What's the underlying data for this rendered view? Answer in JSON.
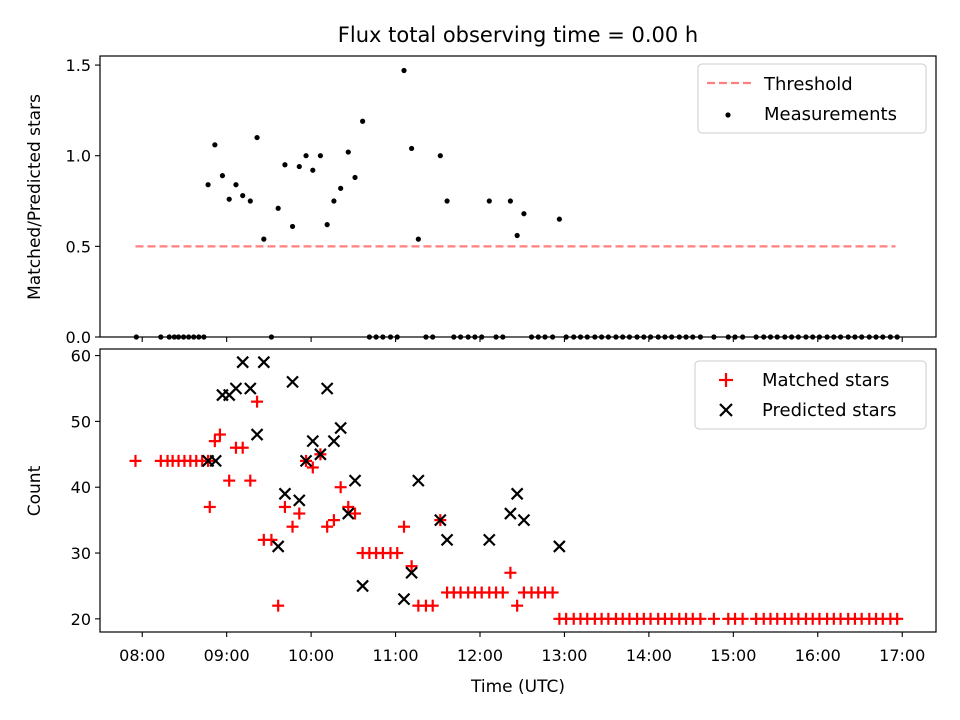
{
  "figure_title": "Flux total observing time = 0.00 h",
  "colors": {
    "threshold": "#ff7f7f",
    "matched": "#ff0000",
    "predicted": "#000000",
    "measurement": "#000000"
  },
  "chart_data": [
    {
      "type": "scatter",
      "ylabel": "Matched/Predicted stars",
      "ylim": [
        0,
        1.55
      ],
      "yticks": [
        0.0,
        0.5,
        1.0,
        1.5
      ],
      "ytick_labels": [
        "0.0",
        "0.5",
        "1.0",
        "1.5"
      ],
      "xlim": [
        7.5,
        17.4
      ],
      "legend_position": "top-right",
      "threshold": {
        "name": "Threshold",
        "y": 0.5,
        "x_range": [
          7.92,
          16.92
        ]
      },
      "measurements": {
        "name": "Measurements",
        "x": [
          7.93,
          8.22,
          8.32,
          8.38,
          8.43,
          8.49,
          8.55,
          8.61,
          8.67,
          8.73,
          8.78,
          8.86,
          8.95,
          9.03,
          9.11,
          9.19,
          9.28,
          9.36,
          9.44,
          9.53,
          9.61,
          9.69,
          9.78,
          9.86,
          9.94,
          10.02,
          10.11,
          10.19,
          10.27,
          10.35,
          10.44,
          10.52,
          10.61,
          10.69,
          10.77,
          10.85,
          10.94,
          11.02,
          11.1,
          11.19,
          11.27,
          11.36,
          11.44,
          11.53,
          11.61,
          11.69,
          11.77,
          11.86,
          11.94,
          12.02,
          12.11,
          12.19,
          12.27,
          12.36,
          12.44,
          12.52,
          12.61,
          12.69,
          12.77,
          12.86,
          12.94,
          13.02,
          13.11,
          13.19,
          13.27,
          13.36,
          13.44,
          13.52,
          13.61,
          13.69,
          13.77,
          13.86,
          13.94,
          14.02,
          14.11,
          14.19,
          14.27,
          14.36,
          14.44,
          14.52,
          14.61,
          14.77,
          14.94,
          15.02,
          15.11,
          15.27,
          15.36,
          15.44,
          15.52,
          15.61,
          15.69,
          15.77,
          15.86,
          15.94,
          16.02,
          16.11,
          16.19,
          16.27,
          16.36,
          16.44,
          16.52,
          16.61,
          16.69,
          16.77,
          16.86,
          16.94
        ],
        "y": [
          0,
          0,
          0,
          0,
          0,
          0,
          0,
          0,
          0,
          0,
          0.84,
          1.06,
          0.89,
          0.76,
          0.84,
          0.78,
          0.75,
          1.1,
          0.54,
          0,
          0.71,
          0.95,
          0.61,
          0.94,
          1.0,
          0.92,
          1.0,
          0.62,
          0.75,
          0.82,
          1.02,
          0.88,
          1.19,
          0,
          0,
          0,
          0,
          0,
          1.47,
          1.04,
          0.54,
          0,
          0,
          1.0,
          0.75,
          0,
          0,
          0,
          0,
          0,
          0.75,
          0,
          0,
          0.75,
          0.56,
          0.68,
          0,
          0,
          0,
          0,
          0.65,
          0,
          0,
          0,
          0,
          0,
          0,
          0,
          0,
          0,
          0,
          0,
          0,
          0,
          0,
          0,
          0,
          0,
          0,
          0,
          0,
          0,
          0,
          0,
          0,
          0,
          0,
          0,
          0,
          0,
          0,
          0,
          0,
          0,
          0,
          0,
          0,
          0,
          0,
          0,
          0,
          0,
          0,
          0,
          0,
          0
        ]
      }
    },
    {
      "type": "scatter",
      "title": "",
      "ylabel": "Count",
      "xlabel": "Time (UTC)",
      "ylim": [
        18,
        61
      ],
      "yticks": [
        20,
        30,
        40,
        50,
        60
      ],
      "ytick_labels": [
        "20",
        "30",
        "40",
        "50",
        "60"
      ],
      "xlim": [
        7.5,
        17.4
      ],
      "xticks": [
        8,
        9,
        10,
        11,
        12,
        13,
        14,
        15,
        16,
        17
      ],
      "xtick_labels": [
        "08:00",
        "09:00",
        "10:00",
        "11:00",
        "12:00",
        "13:00",
        "14:00",
        "15:00",
        "16:00",
        "17:00"
      ],
      "legend_position": "top-right",
      "series": [
        {
          "name": "Matched stars",
          "marker": "plus",
          "x": [
            7.92,
            8.22,
            8.3,
            8.36,
            8.43,
            8.5,
            8.57,
            8.64,
            8.71,
            8.78,
            8.8,
            8.86,
            8.92,
            9.03,
            9.11,
            9.19,
            9.28,
            9.36,
            9.44,
            9.53,
            9.61,
            9.69,
            9.78,
            9.86,
            9.94,
            10.02,
            10.11,
            10.19,
            10.27,
            10.35,
            10.44,
            10.52,
            10.61,
            10.69,
            10.77,
            10.85,
            10.94,
            11.02,
            11.1,
            11.19,
            11.27,
            11.36,
            11.44,
            11.53,
            11.61,
            11.69,
            11.77,
            11.86,
            11.94,
            12.02,
            12.11,
            12.19,
            12.27,
            12.36,
            12.44,
            12.52,
            12.61,
            12.69,
            12.77,
            12.86,
            12.94,
            13.02,
            13.11,
            13.19,
            13.27,
            13.36,
            13.44,
            13.52,
            13.61,
            13.69,
            13.77,
            13.86,
            13.94,
            14.02,
            14.11,
            14.19,
            14.27,
            14.36,
            14.44,
            14.52,
            14.61,
            14.77,
            14.94,
            15.02,
            15.11,
            15.27,
            15.36,
            15.44,
            15.52,
            15.61,
            15.69,
            15.77,
            15.86,
            15.94,
            16.02,
            16.11,
            16.19,
            16.27,
            16.36,
            16.44,
            16.52,
            16.61,
            16.69,
            16.77,
            16.86,
            16.94
          ],
          "y": [
            44,
            44,
            44,
            44,
            44,
            44,
            44,
            44,
            44,
            44,
            37,
            47,
            48,
            41,
            46,
            46,
            41,
            53,
            32,
            32,
            22,
            37,
            34,
            36,
            44,
            43,
            45,
            34,
            35,
            40,
            37,
            36,
            30,
            30,
            30,
            30,
            30,
            30,
            34,
            28,
            22,
            22,
            22,
            35,
            24,
            24,
            24,
            24,
            24,
            24,
            24,
            24,
            24,
            27,
            22,
            24,
            24,
            24,
            24,
            24,
            20,
            20,
            20,
            20,
            20,
            20,
            20,
            20,
            20,
            20,
            20,
            20,
            20,
            20,
            20,
            20,
            20,
            20,
            20,
            20,
            20,
            20,
            20,
            20,
            20,
            20,
            20,
            20,
            20,
            20,
            20,
            20,
            20,
            20,
            20,
            20,
            20,
            20,
            20,
            20,
            20,
            20,
            20,
            20,
            20,
            20
          ]
        },
        {
          "name": "Predicted stars",
          "marker": "x",
          "x": [
            8.78,
            8.87,
            8.95,
            9.03,
            9.11,
            9.19,
            9.28,
            9.36,
            9.44,
            9.61,
            9.69,
            9.78,
            9.86,
            9.94,
            10.02,
            10.11,
            10.19,
            10.27,
            10.35,
            10.44,
            10.52,
            10.61,
            11.1,
            11.19,
            11.27,
            11.53,
            11.61,
            12.11,
            12.36,
            12.44,
            12.52,
            12.94
          ],
          "y": [
            44,
            44,
            54,
            54,
            55,
            59,
            55,
            48,
            59,
            31,
            39,
            56,
            38,
            44,
            47,
            45,
            55,
            47,
            49,
            36,
            41,
            25,
            23,
            27,
            41,
            35,
            32,
            32,
            36,
            39,
            35,
            31
          ]
        }
      ]
    }
  ]
}
